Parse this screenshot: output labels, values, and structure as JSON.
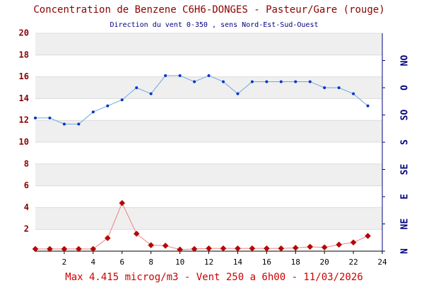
{
  "chart_data": {
    "type": "line",
    "title": "Concentration de Benzene C6H6-DONGES - Pasteur/Gare (rouge)",
    "subtitle": "Direction du vent 0-350 , sens Nord-Est-Sud-Ouest",
    "footer": "Max 4.415 microg/m3 - Vent 250  a 6h00 - 11/03/2026",
    "x": [
      0,
      1,
      2,
      3,
      4,
      5,
      6,
      7,
      8,
      9,
      10,
      11,
      12,
      13,
      14,
      15,
      16,
      17,
      18,
      19,
      20,
      21,
      22,
      23
    ],
    "xlim": [
      0,
      24
    ],
    "xticks": [
      2,
      4,
      6,
      8,
      10,
      12,
      14,
      16,
      18,
      20,
      22,
      24
    ],
    "ylim": [
      0,
      20
    ],
    "yticks": [
      2,
      4,
      6,
      8,
      10,
      12,
      14,
      16,
      18,
      20
    ],
    "y2lim": [
      0,
      360
    ],
    "y2ticks": [
      {
        "value": 0,
        "label": "N"
      },
      {
        "value": 45,
        "label": "NE"
      },
      {
        "value": 90,
        "label": "E"
      },
      {
        "value": 135,
        "label": "SE"
      },
      {
        "value": 180,
        "label": "S"
      },
      {
        "value": 225,
        "label": "SO"
      },
      {
        "value": 270,
        "label": "O"
      },
      {
        "value": 315,
        "label": "NO"
      }
    ],
    "grid": true,
    "series": [
      {
        "name": "Benzene",
        "color": "#c00000",
        "values": [
          0.2,
          0.2,
          0.2,
          0.2,
          0.2,
          1.2,
          4.415,
          1.6,
          0.55,
          0.5,
          0.15,
          0.2,
          0.25,
          0.25,
          0.25,
          0.25,
          0.25,
          0.25,
          0.3,
          0.4,
          0.35,
          0.6,
          0.8,
          1.4
        ]
      },
      {
        "name": "Vent",
        "color": "#0033cc",
        "axis": "y2",
        "values": [
          220,
          220,
          210,
          210,
          230,
          240,
          250,
          270,
          260,
          290,
          290,
          280,
          290,
          280,
          260,
          280,
          280,
          280,
          280,
          280,
          270,
          270,
          260,
          240
        ]
      }
    ]
  }
}
